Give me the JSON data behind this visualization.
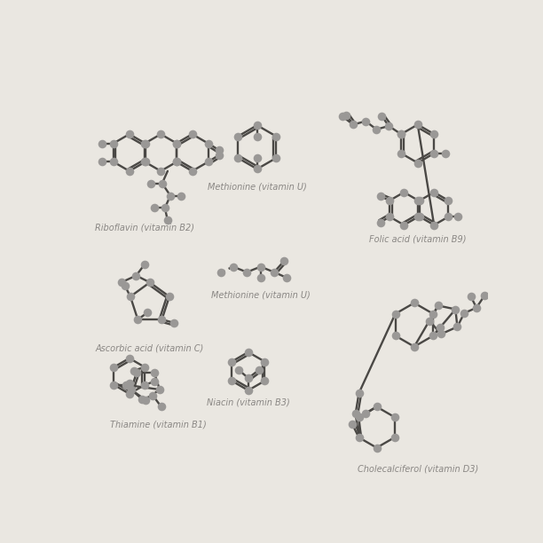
{
  "bg_color": "#eae7e1",
  "line_color": "#4a4845",
  "dot_color": "#9a9896",
  "line_width": 1.7,
  "dot_size": 48,
  "font_color": "#8a8784",
  "font_size": 7.0,
  "labels": {
    "riboflavin": "Riboflavin (vitamin B2)",
    "methionine_u": "Methionine (vitamin U)",
    "folic_b9": "Folic acid (vitamin B9)",
    "methionine_u2": "Methionine (vitamin U)",
    "ascorbic_c": "Ascorbic acid (vitamin C)",
    "niacin_b3": "Niacin (vitamin B3)",
    "thiamine_b1": "Thiamine (vitamin B1)",
    "cholecalciferol_d3": "Cholecalciferol (vitamin D3)"
  }
}
